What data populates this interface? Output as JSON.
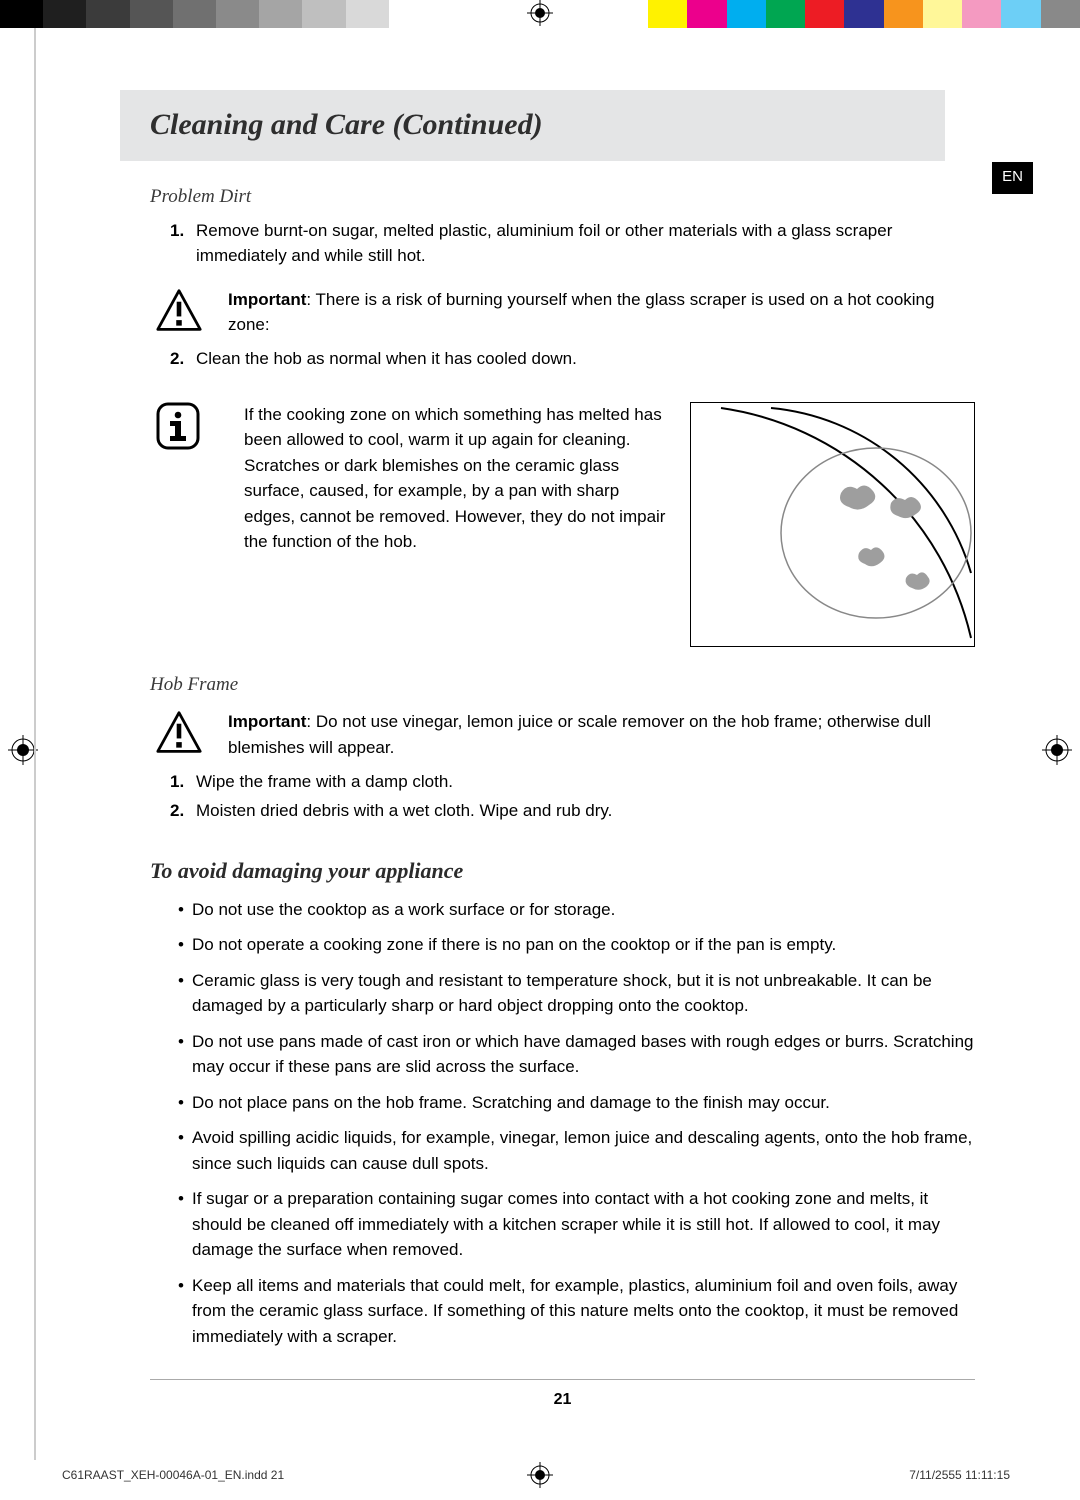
{
  "colorbar": {
    "grays": [
      "#000000",
      "#1f1f1f",
      "#3b3b3b",
      "#555555",
      "#707070",
      "#8a8a8a",
      "#a5a5a5",
      "#bfbfbf",
      "#d9d9d9",
      "#ffffff"
    ],
    "colors": [
      "#fff200",
      "#ec008c",
      "#00aeef",
      "#00a651",
      "#ed1c24",
      "#2e3192",
      "#f7941d",
      "#fff799",
      "#f49ac1",
      "#6dcff6",
      "#898989"
    ]
  },
  "lang_tag": "EN",
  "title": "Cleaning and Care (Continued)",
  "section1": {
    "heading": "Problem Dirt",
    "item1": "Remove burnt-on sugar, melted plastic, aluminium foil or other materials with a glass scraper immediately and while still hot.",
    "important_prefix": "Important",
    "important_text": ": There is a risk of burning yourself when the glass scraper is used on a hot cooking zone:",
    "item2": "Clean the hob as normal when it has cooled down.",
    "info_para1": "If the cooking zone on which something has melted has been allowed to cool, warm it up again for cleaning.",
    "info_para2": "Scratches or dark blemishes on the ceramic glass surface, caused, for example, by a pan with sharp edges, cannot be removed. However, they do not impair the function of the hob."
  },
  "section2": {
    "heading": "Hob Frame",
    "important_prefix": "Important",
    "important_text": ": Do not use vinegar, lemon juice or scale remover on the hob frame; otherwise dull blemishes will appear.",
    "item1": "Wipe the frame with a damp cloth.",
    "item2": "Moisten dried debris with a wet cloth. Wipe and rub dry."
  },
  "section3": {
    "heading": "To avoid damaging your appliance",
    "bullets": [
      "Do not use the cooktop as a work surface or for storage.",
      "Do not operate a cooking zone if there is no pan on the cooktop or if the pan is empty.",
      "Ceramic glass is very tough and resistant to temperature shock, but it is not unbreakable. It can be damaged by a particularly sharp or hard object dropping onto the cooktop.",
      "Do not use pans made of cast iron or which have damaged bases with rough edges or burrs. Scratching may occur if these pans are slid across the surface.",
      "Do not place pans on the hob frame. Scratching and damage to the finish may occur.",
      "Avoid spilling acidic liquids, for example, vinegar, lemon juice and descaling agents, onto the hob frame, since such liquids can cause dull spots.",
      "If sugar or a preparation containing sugar comes into contact with a hot cooking zone and melts, it should be cleaned off immediately with a kitchen scraper while it is still hot. If allowed to cool, it may damage the surface when removed.",
      "Keep all items and materials that could melt, for example, plastics, aluminium foil and oven foils, away from the ceramic glass surface. If something of this nature melts onto the cooktop, it must be removed immediately with a scraper."
    ]
  },
  "page_number": "21",
  "footer": {
    "file": "C61RAAST_XEH-00046A-01_EN.indd   21",
    "timestamp": "7/11/2555   11:11:15"
  },
  "numbers": {
    "n1": "1.",
    "n2": "2."
  },
  "bullet_char": "•"
}
